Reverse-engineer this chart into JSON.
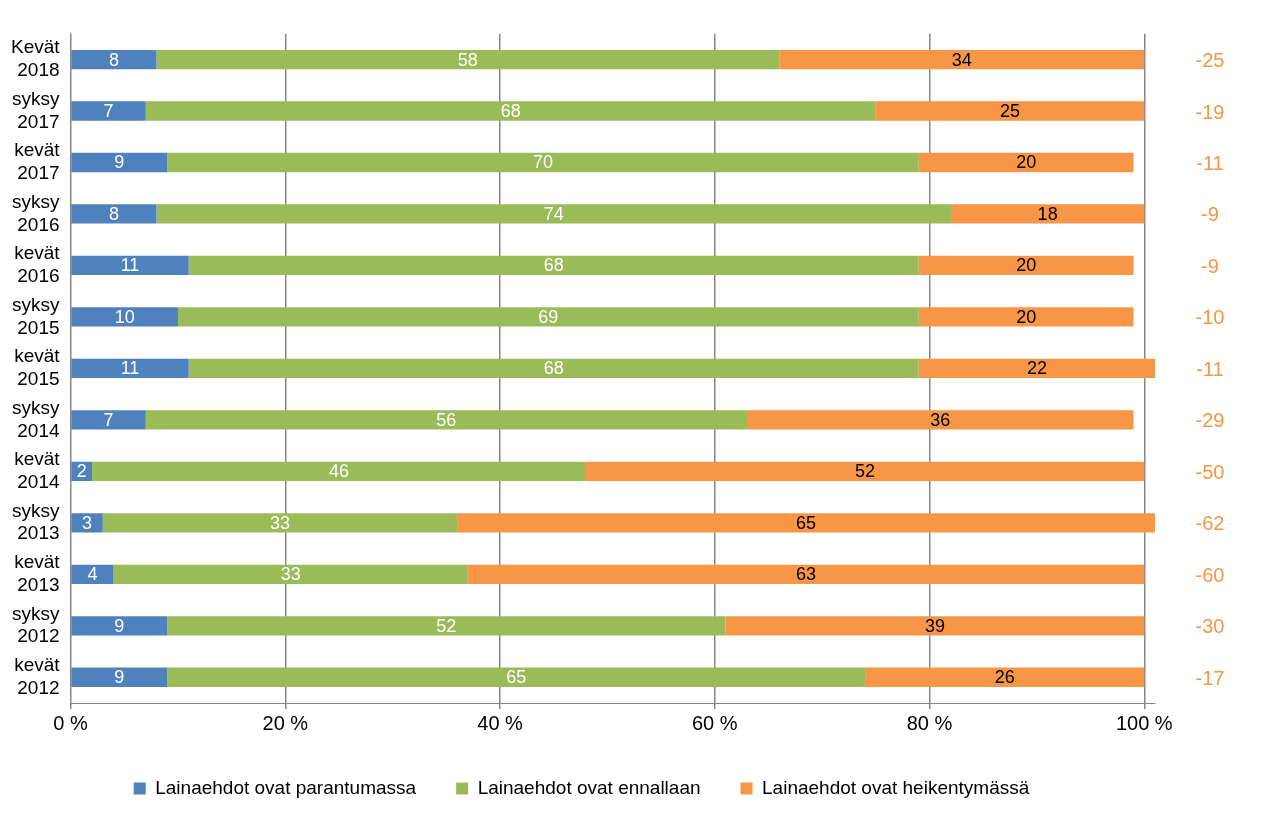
{
  "chart_data": {
    "type": "bar",
    "orientation": "horizontal",
    "stacked": true,
    "categories": [
      "Kevät 2018",
      "syksy 2017",
      "kevät 2017",
      "syksy 2016",
      "kevät 2016",
      "syksy 2015",
      "kevät 2015",
      "syksy 2014",
      "kevät 2014",
      "syksy 2013",
      "kevät 2013",
      "syksy 2012",
      "kevät 2012"
    ],
    "series": [
      {
        "name": "Lainaehdot ovat parantumassa",
        "color": "#4f81bd",
        "values": [
          8,
          7,
          9,
          8,
          11,
          10,
          11,
          7,
          2,
          3,
          4,
          9,
          9
        ]
      },
      {
        "name": "Lainaehdot ovat ennallaan",
        "color": "#9bbb59",
        "values": [
          58,
          68,
          70,
          74,
          68,
          69,
          68,
          56,
          46,
          33,
          33,
          52,
          65
        ]
      },
      {
        "name": "Lainaehdot ovat heikentymässä",
        "color": "#f79646",
        "values": [
          34,
          25,
          20,
          18,
          20,
          20,
          22,
          36,
          52,
          65,
          63,
          39,
          26
        ]
      }
    ],
    "xlim": [
      0,
      101
    ],
    "xticks": [
      {
        "value": 0,
        "label": "0 %"
      },
      {
        "value": 20,
        "label": "20 %"
      },
      {
        "value": 40,
        "label": "40 %"
      },
      {
        "value": 60,
        "label": "60 %"
      },
      {
        "value": 80,
        "label": "80 %"
      },
      {
        "value": 100,
        "label": "100 %"
      }
    ],
    "grid": "x",
    "legend": "bottom",
    "data_labels": true,
    "annotations": [
      "-25",
      "-19",
      "-11",
      "-9",
      "-9",
      "-10",
      "-11",
      "-29",
      "-50",
      "-62",
      "-60",
      "-30",
      "-17"
    ]
  }
}
